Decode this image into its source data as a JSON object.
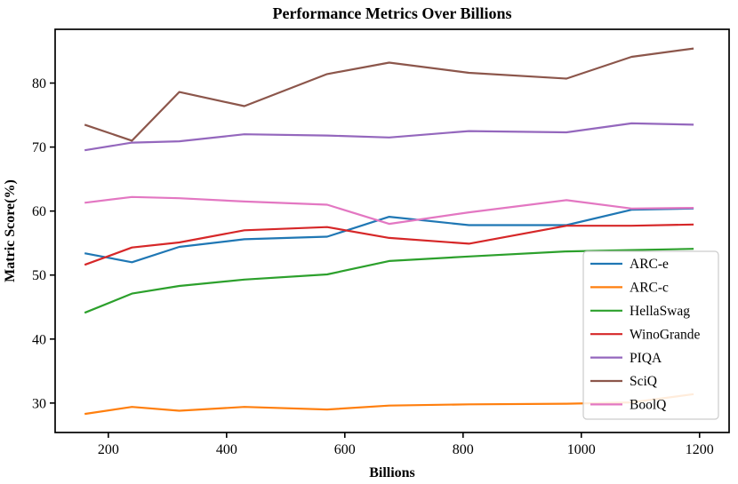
{
  "chart_data": {
    "type": "line",
    "title": "Performance Metrics Over Billions",
    "xlabel": "Billions",
    "ylabel": "Matric Score(%)",
    "x": [
      160,
      240,
      320,
      430,
      570,
      675,
      810,
      975,
      1085,
      1190
    ],
    "series": [
      {
        "name": "ARC-e",
        "color": "#1f77b4",
        "values": [
          53.4,
          52.0,
          54.4,
          55.6,
          56.0,
          59.1,
          57.8,
          57.8,
          60.2,
          60.4
        ]
      },
      {
        "name": "ARC-c",
        "color": "#ff7f0e",
        "values": [
          28.3,
          29.4,
          28.8,
          29.4,
          29.0,
          29.6,
          29.8,
          29.9,
          30.1,
          31.4
        ]
      },
      {
        "name": "HellaSwag",
        "color": "#2ca02c",
        "values": [
          44.1,
          47.1,
          48.3,
          49.3,
          50.1,
          52.2,
          52.9,
          53.7,
          53.9,
          54.1
        ]
      },
      {
        "name": "WinoGrande",
        "color": "#d62728",
        "values": [
          51.6,
          54.3,
          55.1,
          57.0,
          57.5,
          55.8,
          54.9,
          57.7,
          57.7,
          57.9
        ]
      },
      {
        "name": "PIQA",
        "color": "#9467bd",
        "values": [
          69.5,
          70.7,
          70.9,
          72.0,
          71.8,
          71.5,
          72.5,
          72.3,
          73.7,
          73.5
        ]
      },
      {
        "name": "SciQ",
        "color": "#8c564b",
        "values": [
          73.5,
          71.0,
          78.6,
          76.4,
          81.4,
          83.2,
          81.6,
          80.7,
          84.1,
          85.4
        ]
      },
      {
        "name": "BoolQ",
        "color": "#e377c2",
        "values": [
          61.3,
          62.2,
          62.0,
          61.5,
          61.0,
          58.0,
          59.8,
          61.7,
          60.4,
          60.5
        ]
      }
    ],
    "xticks": [
      200,
      400,
      600,
      800,
      1000,
      1200
    ],
    "yticks": [
      30,
      40,
      50,
      60,
      70,
      80
    ],
    "xlim": [
      110,
      1250
    ],
    "ylim": [
      25.4,
      88.4
    ],
    "grid": false,
    "legend_position": "center right",
    "frame_color": "#000000",
    "legend_edge_color": "#cccccc"
  }
}
